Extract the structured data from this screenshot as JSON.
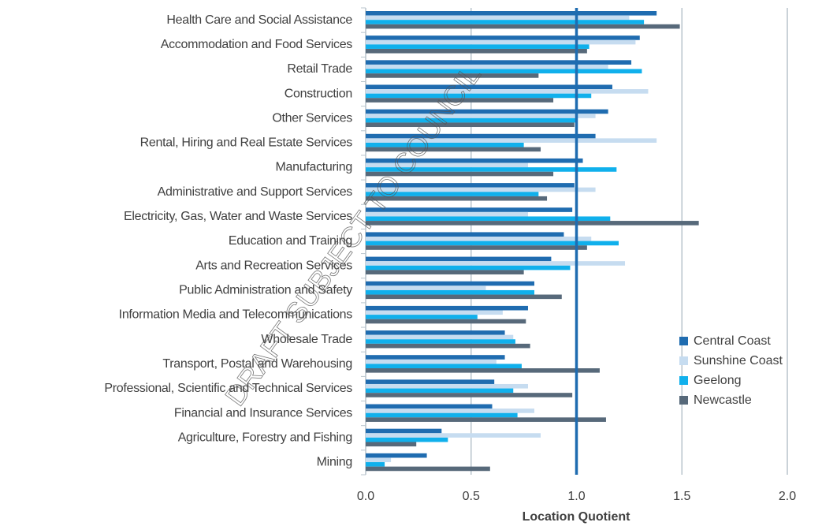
{
  "chart_data": {
    "type": "barh",
    "watermark": "DRAFT SUBJECT TO COUNCIL",
    "xlabel": "Location Quotient",
    "categories": [
      "Health Care and Social Assistance",
      "Accommodation and Food Services",
      "Retail Trade",
      "Construction",
      "Other Services",
      "Rental, Hiring and Real Estate Services",
      "Manufacturing",
      "Administrative and Support Services",
      "Electricity, Gas, Water and Waste Services",
      "Education and Training",
      "Arts and Recreation Services",
      "Public Administration and Safety",
      "Information Media and Telecommunications",
      "Wholesale Trade",
      "Transport, Postal and Warehousing",
      "Professional, Scientific and Technical Services",
      "Financial and Insurance Services",
      "Agriculture, Forestry and Fishing",
      "Mining"
    ],
    "series": [
      {
        "name": "Central Coast",
        "color": "#1f6cb0",
        "values": [
          1.38,
          1.3,
          1.26,
          1.17,
          1.15,
          1.09,
          1.03,
          0.99,
          0.98,
          0.94,
          0.88,
          0.8,
          0.77,
          0.66,
          0.66,
          0.61,
          0.6,
          0.36,
          0.29
        ]
      },
      {
        "name": "Sunshine Coast",
        "color": "#c6dcf0",
        "values": [
          1.25,
          1.28,
          1.15,
          1.34,
          1.09,
          1.38,
          0.77,
          1.09,
          0.77,
          1.07,
          1.23,
          0.57,
          0.65,
          0.7,
          0.62,
          0.77,
          0.8,
          0.83,
          0.12
        ]
      },
      {
        "name": "Geelong",
        "color": "#10b0ec",
        "values": [
          1.32,
          1.06,
          1.31,
          1.07,
          1.0,
          0.75,
          1.19,
          0.82,
          1.16,
          1.2,
          0.97,
          0.8,
          0.53,
          0.71,
          0.74,
          0.7,
          0.72,
          0.39,
          0.09
        ]
      },
      {
        "name": "Newcastle",
        "color": "#57697a",
        "values": [
          1.49,
          1.05,
          0.82,
          0.89,
          0.99,
          0.83,
          0.89,
          0.86,
          1.58,
          1.05,
          0.75,
          0.93,
          0.76,
          0.78,
          1.11,
          0.98,
          1.14,
          0.24,
          0.59
        ]
      }
    ],
    "reference_line": {
      "value": 1.0,
      "color": "#1f6cb0"
    },
    "xlim": [
      0,
      2.2
    ],
    "xticks": [
      {
        "value": 0,
        "label": "0.0"
      },
      {
        "value": 0.5,
        "label": "0.5"
      },
      {
        "value": 1,
        "label": "1.0"
      },
      {
        "value": 1.5,
        "label": "1.5"
      },
      {
        "value": 2,
        "label": "2.0"
      }
    ],
    "grid": true,
    "legend": "lower right"
  }
}
